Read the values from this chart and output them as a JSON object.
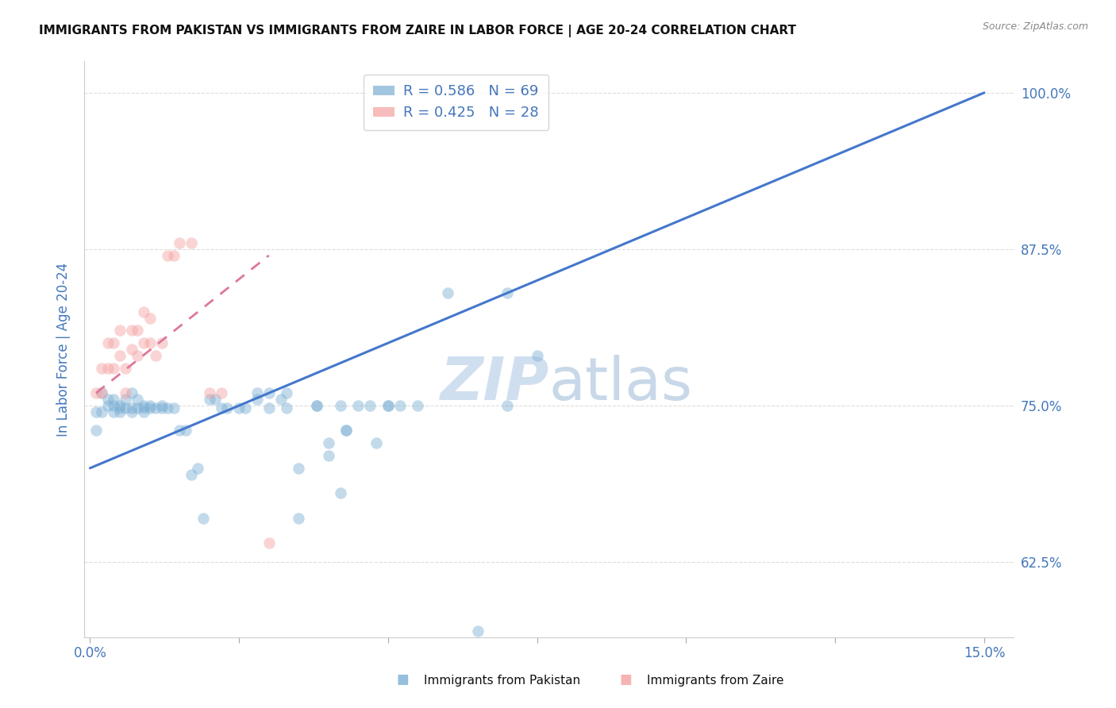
{
  "title": "IMMIGRANTS FROM PAKISTAN VS IMMIGRANTS FROM ZAIRE IN LABOR FORCE | AGE 20-24 CORRELATION CHART",
  "source": "Source: ZipAtlas.com",
  "ylabel_label": "In Labor Force | Age 20-24",
  "legend_blue_r": "R = 0.586",
  "legend_blue_n": "N = 69",
  "legend_pink_r": "R = 0.425",
  "legend_pink_n": "N = 28",
  "legend_blue_label": "Immigrants from Pakistan",
  "legend_pink_label": "Immigrants from Zaire",
  "blue_color": "#7BAFD4",
  "pink_color": "#F4A0A0",
  "trend_blue_color": "#4477CC",
  "trend_pink_color": "#DD7799",
  "watermark_color": "#D0DFF0",
  "title_color": "#111111",
  "tick_color": "#4477BB",
  "grid_color": "#DDDDDD",
  "xlim": [
    -0.001,
    0.155
  ],
  "ylim": [
    0.565,
    1.025
  ],
  "yticks": [
    0.625,
    0.75,
    0.875,
    1.0
  ],
  "ytick_labels": [
    "62.5%",
    "75.0%",
    "87.5%",
    "100.0%"
  ],
  "xticks": [
    0.0,
    0.025,
    0.05,
    0.075,
    0.1,
    0.125,
    0.15
  ],
  "xtick_labels": [
    "0.0%",
    "",
    "",
    "",
    "",
    "",
    "15.0%"
  ],
  "pakistan_x": [
    0.001,
    0.001,
    0.002,
    0.002,
    0.003,
    0.003,
    0.004,
    0.004,
    0.004,
    0.005,
    0.005,
    0.005,
    0.006,
    0.006,
    0.007,
    0.007,
    0.007,
    0.008,
    0.008,
    0.009,
    0.009,
    0.009,
    0.01,
    0.01,
    0.011,
    0.012,
    0.012,
    0.013,
    0.014,
    0.015,
    0.016,
    0.017,
    0.018,
    0.019,
    0.02,
    0.021,
    0.022,
    0.023,
    0.025,
    0.026,
    0.028,
    0.03,
    0.032,
    0.033,
    0.035,
    0.038,
    0.04,
    0.043,
    0.05,
    0.055,
    0.06,
    0.065,
    0.07,
    0.075,
    0.035,
    0.04,
    0.042,
    0.048,
    0.052,
    0.028,
    0.03,
    0.033,
    0.038,
    0.042,
    0.043,
    0.045,
    0.047,
    0.05,
    0.07
  ],
  "pakistan_y": [
    0.73,
    0.745,
    0.745,
    0.76,
    0.75,
    0.755,
    0.75,
    0.745,
    0.755,
    0.75,
    0.748,
    0.745,
    0.755,
    0.748,
    0.76,
    0.748,
    0.745,
    0.755,
    0.748,
    0.75,
    0.748,
    0.745,
    0.748,
    0.75,
    0.748,
    0.75,
    0.748,
    0.748,
    0.748,
    0.73,
    0.73,
    0.695,
    0.7,
    0.66,
    0.755,
    0.755,
    0.748,
    0.748,
    0.748,
    0.748,
    0.755,
    0.748,
    0.755,
    0.748,
    0.7,
    0.75,
    0.72,
    0.73,
    0.75,
    0.75,
    0.84,
    0.57,
    0.75,
    0.79,
    0.66,
    0.71,
    0.68,
    0.72,
    0.75,
    0.76,
    0.76,
    0.76,
    0.75,
    0.75,
    0.73,
    0.75,
    0.75,
    0.75,
    0.84
  ],
  "zaire_x": [
    0.001,
    0.002,
    0.002,
    0.003,
    0.003,
    0.004,
    0.004,
    0.005,
    0.005,
    0.006,
    0.006,
    0.007,
    0.007,
    0.008,
    0.008,
    0.009,
    0.009,
    0.01,
    0.01,
    0.011,
    0.012,
    0.013,
    0.014,
    0.015,
    0.017,
    0.02,
    0.022,
    0.03
  ],
  "zaire_y": [
    0.76,
    0.76,
    0.78,
    0.8,
    0.78,
    0.8,
    0.78,
    0.79,
    0.81,
    0.78,
    0.76,
    0.81,
    0.795,
    0.79,
    0.81,
    0.825,
    0.8,
    0.82,
    0.8,
    0.79,
    0.8,
    0.87,
    0.87,
    0.88,
    0.88,
    0.76,
    0.76,
    0.64
  ],
  "blue_trend_x0": 0.0,
  "blue_trend_y0": 0.7,
  "blue_trend_x1": 0.15,
  "blue_trend_y1": 1.0,
  "pink_trend_x0": 0.001,
  "pink_trend_y0": 0.76,
  "pink_trend_x1": 0.03,
  "pink_trend_y1": 0.87
}
